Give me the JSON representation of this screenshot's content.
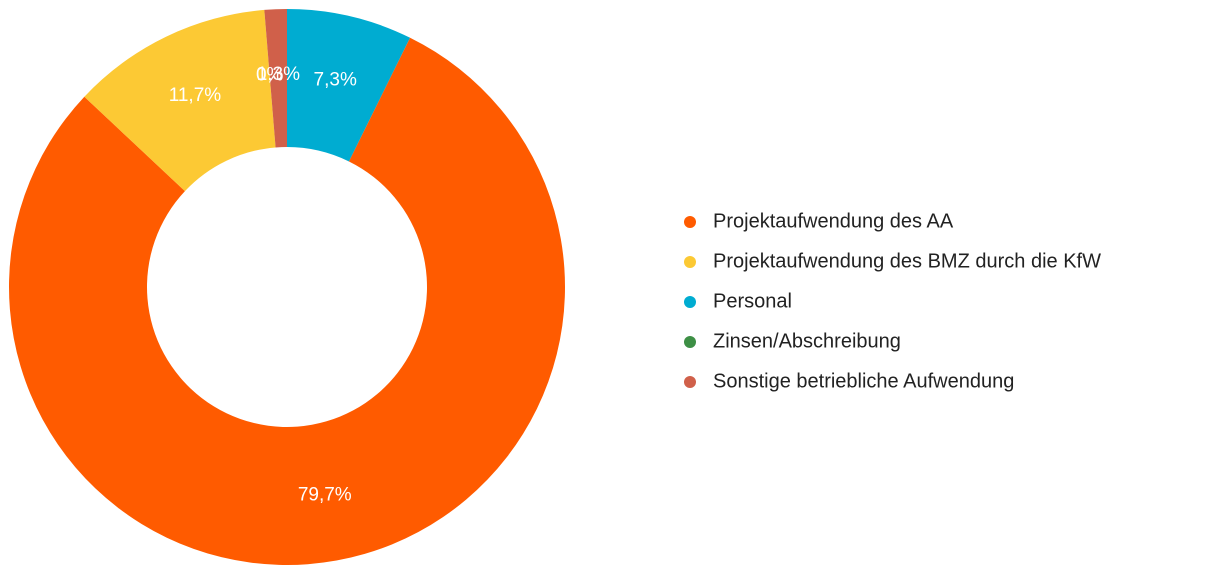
{
  "chart_data": {
    "type": "pie",
    "donut": true,
    "categories": [
      "Projektaufwendung des AA",
      "Projektaufwendung des BMZ durch die KfW",
      "Personal",
      "Zinsen/Abschreibung",
      "Sonstige betriebliche Aufwendung"
    ],
    "values": [
      79.7,
      11.7,
      7.3,
      0,
      1.3
    ],
    "value_labels": [
      "79,7%",
      "11,7%",
      "7,3%",
      "0%",
      "1,3%"
    ],
    "colors": [
      "#ff5b00",
      "#fcc934",
      "#00acd1",
      "#3d8f45",
      "#d0604a"
    ],
    "legend": "right"
  }
}
